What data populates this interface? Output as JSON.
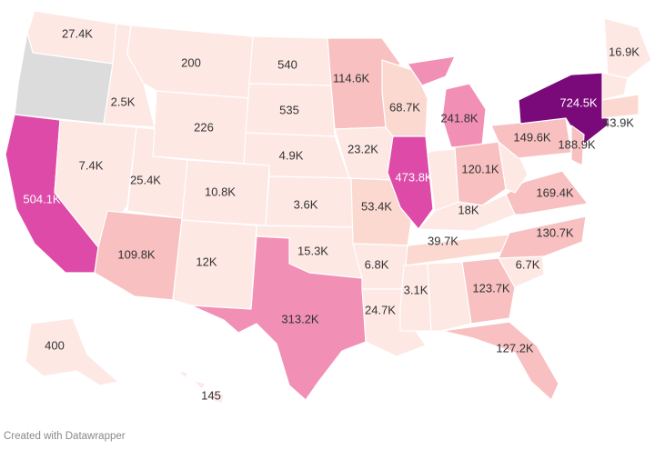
{
  "credit": "Created with Datawrapper",
  "colors": {
    "no_data": "#dcdcdc",
    "low": "#fde8e4",
    "pale": "#fbd9d1",
    "light": "#f8c0c0",
    "mid": "#f18fb5",
    "high": "#dd4aa8",
    "max": "#7a0a7a"
  },
  "states": [
    {
      "id": "WA",
      "label": "27.4K",
      "value": 27400
    },
    {
      "id": "OR",
      "label": "",
      "value": null
    },
    {
      "id": "CA",
      "label": "504.1K",
      "value": 504100
    },
    {
      "id": "ID",
      "label": "2.5K",
      "value": 2500
    },
    {
      "id": "NV",
      "label": "7.4K",
      "value": 7400
    },
    {
      "id": "MT",
      "label": "200",
      "value": 200
    },
    {
      "id": "WY",
      "label": "226",
      "value": 226
    },
    {
      "id": "UT",
      "label": "25.4K",
      "value": 25400
    },
    {
      "id": "AZ",
      "label": "109.8K",
      "value": 109800
    },
    {
      "id": "CO",
      "label": "10.8K",
      "value": 10800
    },
    {
      "id": "NM",
      "label": "12K",
      "value": 12000
    },
    {
      "id": "ND",
      "label": "540",
      "value": 540
    },
    {
      "id": "SD",
      "label": "535",
      "value": 535
    },
    {
      "id": "NE",
      "label": "4.9K",
      "value": 4900
    },
    {
      "id": "KS",
      "label": "3.6K",
      "value": 3600
    },
    {
      "id": "OK",
      "label": "15.3K",
      "value": 15300
    },
    {
      "id": "TX",
      "label": "313.2K",
      "value": 313200
    },
    {
      "id": "MN",
      "label": "114.6K",
      "value": 114600
    },
    {
      "id": "IA",
      "label": "23.2K",
      "value": 23200
    },
    {
      "id": "MO",
      "label": "53.4K",
      "value": 53400
    },
    {
      "id": "AR",
      "label": "6.8K",
      "value": 6800
    },
    {
      "id": "LA",
      "label": "24.7K",
      "value": 24700
    },
    {
      "id": "WI",
      "label": "68.7K",
      "value": 68700
    },
    {
      "id": "IL",
      "label": "473.8K",
      "value": 473800
    },
    {
      "id": "MI",
      "label": "241.8K",
      "value": 241800
    },
    {
      "id": "IN",
      "label": "",
      "value": null
    },
    {
      "id": "OH",
      "label": "120.1K",
      "value": 120100
    },
    {
      "id": "KY",
      "label": "18K",
      "value": 18000
    },
    {
      "id": "TN",
      "label": "39.7K",
      "value": 39700
    },
    {
      "id": "MS",
      "label": "3.1K",
      "value": 3100
    },
    {
      "id": "AL",
      "label": "",
      "value": null
    },
    {
      "id": "GA",
      "label": "123.7K",
      "value": 123700
    },
    {
      "id": "FL",
      "label": "127.2K",
      "value": 127200
    },
    {
      "id": "SC",
      "label": "6.7K",
      "value": 6700
    },
    {
      "id": "NC",
      "label": "130.7K",
      "value": 130700
    },
    {
      "id": "VA",
      "label": "169.4K",
      "value": 169400
    },
    {
      "id": "WV",
      "label": "",
      "value": null
    },
    {
      "id": "PA",
      "label": "149.6K",
      "value": 149600
    },
    {
      "id": "NY",
      "label": "724.5K",
      "value": 724500
    },
    {
      "id": "NJ",
      "label": "188.9K",
      "value": 188900
    },
    {
      "id": "MA",
      "label": "43.9K",
      "value": 43900
    },
    {
      "id": "ME",
      "label": "16.9K",
      "value": 16900
    },
    {
      "id": "NE_small",
      "label": "",
      "value": null
    },
    {
      "id": "AK",
      "label": "400",
      "value": 400
    },
    {
      "id": "HI",
      "label": "145",
      "value": 145
    }
  ]
}
